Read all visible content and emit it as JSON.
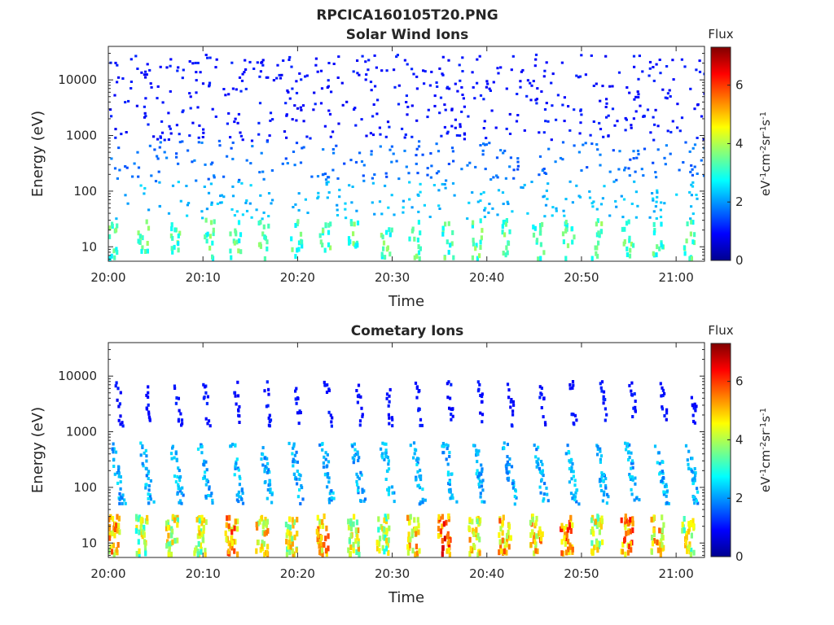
{
  "figure_title": "RPCICA160105T20.PNG",
  "chart_data": [
    {
      "type": "heatmap",
      "title": "Solar Wind Ions",
      "xlabel": "Time",
      "ylabel": "Energy (eV)",
      "x_range": [
        "20:00",
        "21:03"
      ],
      "x_ticks": [
        "20:00",
        "20:10",
        "20:20",
        "20:30",
        "20:40",
        "20:50",
        "21:00"
      ],
      "y_scale": "log",
      "y_range": [
        5.5,
        40000
      ],
      "y_ticks": [
        "10",
        "100",
        "1000",
        "10000"
      ],
      "colorbar": {
        "label": "Flux",
        "units": "eV-1cm-2sr-1s-1",
        "range": [
          0,
          7.3
        ],
        "ticks": [
          "0",
          "2",
          "4",
          "6"
        ]
      },
      "description_of_pattern": "sparse scattered counts at all energies; periodic bursts of flux ~3-4 below 30 eV",
      "low_energy_bursts_min": [
        0.5,
        3.6,
        7.1,
        10.5,
        13.3,
        16.3,
        19.8,
        22.8,
        25.8,
        29.3,
        32.3,
        35.8,
        38.8,
        42.0,
        45.3,
        48.5,
        51.6,
        54.8,
        58.0,
        61.2
      ]
    },
    {
      "type": "heatmap",
      "title": "Cometary Ions",
      "xlabel": "Time",
      "ylabel": "Energy (eV)",
      "x_range": [
        "20:00",
        "21:03"
      ],
      "x_ticks": [
        "20:00",
        "20:10",
        "20:20",
        "20:30",
        "20:40",
        "20:50",
        "21:00"
      ],
      "y_scale": "log",
      "y_range": [
        5.5,
        40000
      ],
      "y_ticks": [
        "10",
        "100",
        "1000",
        "10000"
      ],
      "colorbar": {
        "label": "Flux",
        "units": "eV-1cm-2sr-1s-1",
        "range": [
          0,
          7.3
        ],
        "ticks": [
          "0",
          "2",
          "4",
          "6"
        ]
      },
      "description_of_pattern": "periodic dispersed ion bursts roughly every 3.2 minutes; high flux (~5-7) at 6-30 eV, ~2-3 at 50-600 eV, ~1 at 1000-8000 eV",
      "burst_times_min": [
        0.4,
        3.4,
        6.6,
        9.6,
        12.9,
        16.1,
        19.3,
        22.5,
        25.8,
        28.9,
        32.1,
        35.4,
        38.6,
        41.8,
        45.1,
        48.3,
        51.5,
        54.7,
        57.9,
        61.1
      ],
      "burst_peak_flux": [
        6.0,
        5.0,
        5.2,
        5.1,
        6.2,
        5.6,
        5.3,
        6.0,
        5.4,
        5.0,
        5.8,
        6.8,
        5.6,
        6.1,
        5.9,
        6.5,
        5.3,
        6.4,
        5.8,
        5.2
      ]
    }
  ]
}
